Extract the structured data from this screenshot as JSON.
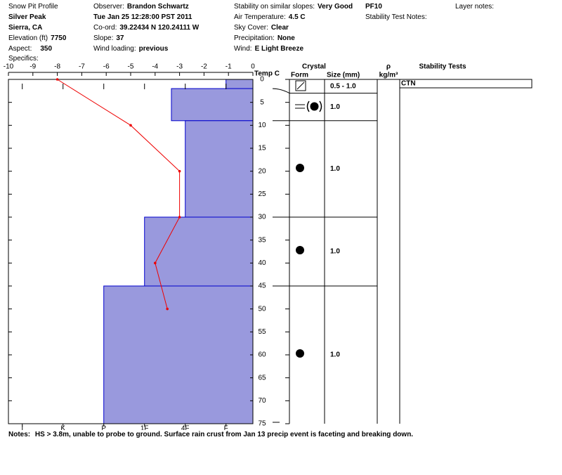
{
  "header": {
    "title": "Snow Pit Profile",
    "location": "Silver Peak",
    "region": "Sierra, CA",
    "elevation": {
      "label": "Elevation (ft)",
      "value": "7750"
    },
    "aspect": {
      "label": "Aspect:",
      "value": "350"
    },
    "specifics": "Specifics:",
    "observer": {
      "label": "Observer:",
      "value": "Brandon Schwartz"
    },
    "date": "Tue Jan 25 12:28:00 PST 2011",
    "coord": {
      "label": "Co-ord:",
      "value": "39.22434 N 120.24111 W"
    },
    "slope": {
      "label": "Slope:",
      "value": "37"
    },
    "wind_loading": {
      "label": "Wind loading:",
      "value": "previous"
    },
    "stability": {
      "label": "Stability on similar slopes:",
      "value": "Very Good"
    },
    "air_temp": {
      "label": "Air Temperature:",
      "value": "4.5 C"
    },
    "sky": {
      "label": "Sky Cover:",
      "value": "Clear"
    },
    "precip": {
      "label": "Precipitation:",
      "value": "None"
    },
    "wind": {
      "label": "Wind:",
      "value": "E Light Breeze"
    },
    "pit_id": "PF10",
    "stability_notes": "Stability Test Notes:",
    "layer_notes": "Layer notes:"
  },
  "chart_data": {
    "type": "snowpit",
    "depth": {
      "ylim": [
        0,
        75
      ],
      "yticks": [
        0,
        5,
        10,
        15,
        20,
        25,
        30,
        35,
        40,
        45,
        50,
        55,
        60,
        65,
        70,
        75
      ]
    },
    "temperature": {
      "label": "Temp C",
      "xlim": [
        -10,
        0
      ],
      "xticks": [
        -10,
        -9,
        -8,
        -7,
        -6,
        -5,
        -4,
        -3,
        -2,
        -1,
        0
      ],
      "depth": [
        0,
        10,
        20,
        30,
        40,
        50
      ],
      "values": [
        -8,
        -5,
        -3,
        -3,
        -4,
        -3.5
      ],
      "color": "#ee0000"
    },
    "hardness": {
      "xlim": [
        6.34,
        0.34
      ],
      "xticks": [
        {
          "value": 6,
          "label": "I"
        },
        {
          "value": 5,
          "label": "K"
        },
        {
          "value": 4,
          "label": "P"
        },
        {
          "value": 3,
          "label": "1F"
        },
        {
          "value": 2,
          "label": "4F"
        },
        {
          "value": 1,
          "label": "F"
        }
      ],
      "layers": [
        {
          "top": 0,
          "bottom": 2,
          "value": 1
        },
        {
          "top": 2,
          "bottom": 9,
          "value": 2.34
        },
        {
          "top": 9,
          "bottom": 30,
          "value": 2
        },
        {
          "top": 30,
          "bottom": 45,
          "value": 3
        },
        {
          "top": 45,
          "bottom": 75,
          "value": 4
        }
      ],
      "color": "#9999dd",
      "edge": "#0000cc"
    },
    "crystals": {
      "title": "Crystal",
      "form_label": "Form",
      "size_label": "Size (mm)",
      "density_symbol": "ρ",
      "density_unit": "kg/m³",
      "layers": [
        {
          "top": 0,
          "bottom": 3,
          "size": "0.5 - 1.0"
        },
        {
          "top": 3,
          "bottom": 9,
          "size": "1.0"
        },
        {
          "top": 9,
          "bottom": 30,
          "size": "1.0"
        },
        {
          "top": 30,
          "bottom": 45,
          "size": "1.0"
        },
        {
          "top": 45,
          "bottom": 75,
          "size": "1.0"
        }
      ]
    },
    "stability_tests": {
      "title": "Stability Tests",
      "tests": [
        {
          "label": "CTN",
          "depth": 0
        }
      ]
    }
  },
  "notes": {
    "label": "Notes:",
    "text": "HS > 3.8m, unable to probe to ground. Surface rain crust from Jan 13 precip event is faceting and breaking down."
  }
}
